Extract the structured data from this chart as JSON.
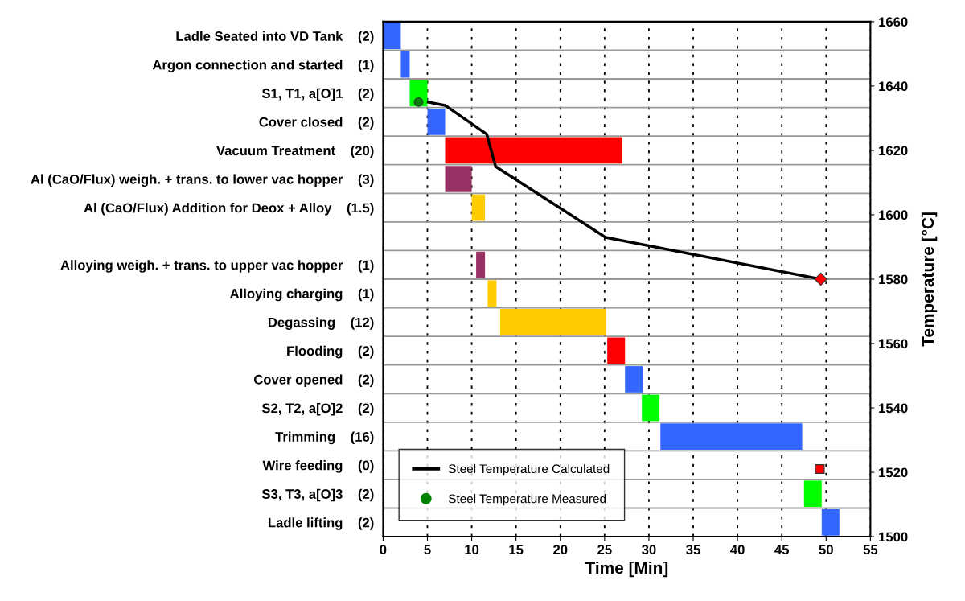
{
  "chart_data": [
    {
      "type": "bar",
      "orientation": "horizontal",
      "categories": [
        "Ladle Seated into VD Tank    (2)",
        "Argon connection and started    (1)",
        "S1, T1, a[O]1    (2)",
        "Cover closed    (2)",
        "Vacuum Treatment    (20)",
        "Al (CaO/Flux) weigh. + trans. to lower vac hopper    (3)",
        "Al (CaO/Flux) Addition for Deox + Alloy    (1.5)",
        null,
        "Alloying weigh. + trans. to upper vac hopper    (1)",
        "Alloying charging    (1)",
        "Degassing    (12)",
        "Flooding    (2)",
        "Cover opened    (2)",
        "S2, T2, a[O]2    (2)",
        "Trimming    (16)",
        "Wire feeding    (0)",
        "S3, T3, a[O]3    (2)",
        "Ladle lifting    (2)"
      ],
      "values": [
        2,
        1,
        2,
        2,
        20,
        3,
        1.5,
        null,
        1,
        1,
        12,
        2,
        2,
        2,
        16,
        null,
        2,
        2
      ],
      "base": [
        0,
        2,
        3,
        5,
        7,
        7,
        10,
        null,
        10.5,
        11.8,
        13.2,
        25.3,
        27.3,
        29.2,
        31.3,
        null,
        47.5,
        49.5
      ],
      "colors": [
        "#3366ff",
        "#3366ff",
        "#00ff00",
        "#3366ff",
        "#ff0000",
        "#993366",
        "#ffcc00",
        null,
        "#993366",
        "#ffcc00",
        "#ffcc00",
        "#ff0000",
        "#3366ff",
        "#00ff00",
        "#3366ff",
        "#ff0000",
        "#00ff00",
        "#3366ff"
      ],
      "xlabel": "Time [Min]",
      "xlim": [
        0,
        55
      ],
      "xticks": [
        0,
        5,
        10,
        15,
        20,
        25,
        30,
        35,
        40,
        45,
        50,
        55
      ],
      "grid": true
    },
    {
      "type": "line",
      "series": [
        {
          "name": "Steel Temperature Calculated",
          "type": "line",
          "color": "#000000",
          "marker": "none",
          "x": [
            5.1,
            7.0,
            11.7,
            12.7,
            25.1,
            49.4
          ],
          "values": [
            1635,
            1634,
            1625,
            1615,
            1593,
            1580
          ]
        },
        {
          "name": "Steel Temperature Measured",
          "type": "scatter",
          "color": "#008000",
          "marker": "circle",
          "x": [
            4.0
          ],
          "values": [
            1635
          ]
        },
        {
          "type": "scatter",
          "color": "#ff0000",
          "marker": "diamond",
          "x": [
            49.4
          ],
          "values": [
            1580
          ]
        },
        {
          "type": "scatter",
          "color": "#ff0000",
          "marker": "square",
          "x": [
            49.3
          ],
          "values": [
            1521
          ]
        }
      ],
      "ylabel": "Temperature [°C]",
      "xlim": [
        0,
        55
      ],
      "ylim": [
        1500,
        1660
      ],
      "yticks": [
        1500,
        1520,
        1540,
        1560,
        1580,
        1600,
        1620,
        1640,
        1660
      ],
      "tick_labels": "y",
      "legend": "lower left"
    }
  ]
}
